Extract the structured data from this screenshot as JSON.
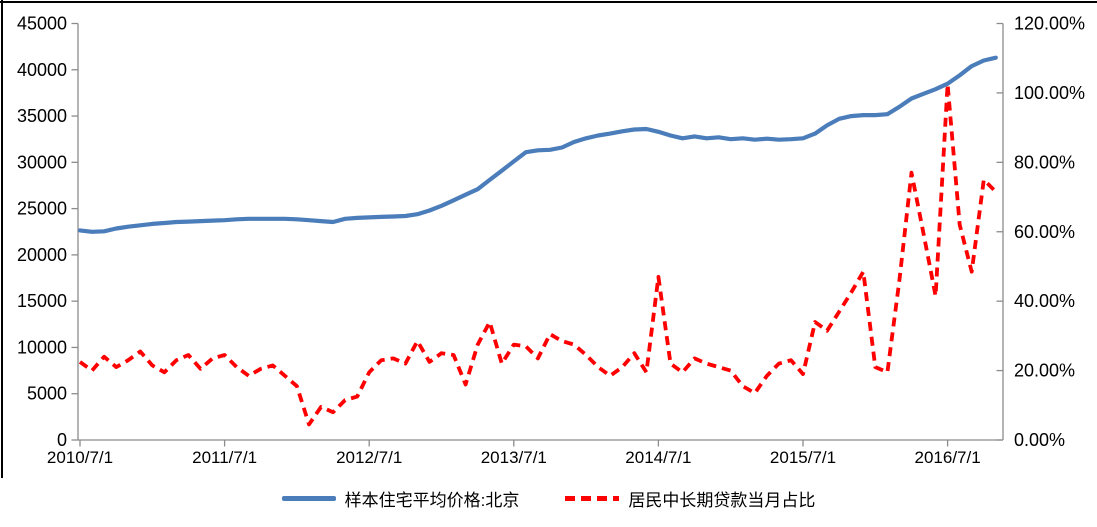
{
  "chart_data": {
    "type": "line",
    "title": "",
    "x_monthly": true,
    "x_start": "2010/7",
    "x_end": "2016/11",
    "x_tick_labels": [
      "2010/7/1",
      "2011/7/1",
      "2012/7/1",
      "2013/7/1",
      "2014/7/1",
      "2015/7/1",
      "2016/7/1"
    ],
    "grid": false,
    "legend_position": "bottom",
    "left_axis": {
      "min": 0,
      "max": 45000,
      "step": 5000,
      "tick_labels": [
        "45000",
        "40000",
        "35000",
        "30000",
        "25000",
        "20000",
        "15000",
        "10000",
        "5000",
        "0"
      ]
    },
    "right_axis": {
      "min": 0,
      "max": 120,
      "step": 20,
      "tick_labels": [
        "120.00%",
        "100.00%",
        "80.00%",
        "60.00%",
        "40.00%",
        "20.00%",
        "0.00%"
      ]
    },
    "series": [
      {
        "name": "样本住宅平均价格:北京",
        "axis": "left",
        "color": "#4A7DBA",
        "line_style": "solid",
        "values": [
          22650,
          22500,
          22550,
          22850,
          23050,
          23200,
          23350,
          23450,
          23550,
          23600,
          23650,
          23700,
          23750,
          23850,
          23900,
          23900,
          23900,
          23900,
          23850,
          23750,
          23650,
          23550,
          23900,
          24000,
          24050,
          24100,
          24150,
          24200,
          24400,
          24800,
          25300,
          25900,
          26500,
          27100,
          28100,
          29100,
          30100,
          31100,
          31300,
          31350,
          31600,
          32200,
          32600,
          32900,
          33100,
          33350,
          33550,
          33600,
          33300,
          32900,
          32600,
          32800,
          32600,
          32700,
          32500,
          32600,
          32450,
          32550,
          32450,
          32500,
          32600,
          33100,
          34000,
          34700,
          35000,
          35100,
          35100,
          35200,
          36000,
          36900,
          37400,
          37900,
          38500,
          39400,
          40400,
          41000,
          41300
        ]
      },
      {
        "name": "居民中长期贷款当月占比",
        "axis": "right",
        "color": "#FF0000",
        "line_style": "dashed",
        "unit": "%",
        "values": [
          22.5,
          20,
          24,
          21,
          23,
          25.5,
          21.5,
          19.5,
          23,
          24.5,
          20.5,
          23.5,
          24.5,
          21,
          18.5,
          20.5,
          21.5,
          18.5,
          15.5,
          4.5,
          9.5,
          8,
          11.5,
          12.5,
          19.5,
          23,
          23.5,
          22,
          28.5,
          22.5,
          25,
          24.5,
          16,
          27.5,
          34,
          22,
          27.5,
          27,
          23.5,
          30.5,
          28.5,
          27.5,
          24.5,
          21,
          18.5,
          21,
          25,
          19.5,
          47,
          22,
          19.5,
          23.5,
          22,
          21,
          20,
          15.5,
          13.5,
          18.5,
          22,
          23,
          19,
          34,
          31.5,
          37,
          42.5,
          48.5,
          21,
          19.5,
          46,
          77,
          59.5,
          41.5,
          102.5,
          62,
          48.5,
          75,
          71.5
        ]
      }
    ]
  },
  "legend": {
    "items": [
      {
        "label": "样本住宅平均价格:北京",
        "color": "#4A7DBA",
        "style": "solid"
      },
      {
        "label": "居民中长期贷款当月占比",
        "color": "#FF0000",
        "style": "dashed"
      }
    ]
  },
  "colors": {
    "background": "#ffffff",
    "axis_line": "#8C8C8C",
    "text": "#000000",
    "partial_border": "#000000",
    "price_line": "#4A7DBA",
    "loan_line": "#FF0000"
  }
}
